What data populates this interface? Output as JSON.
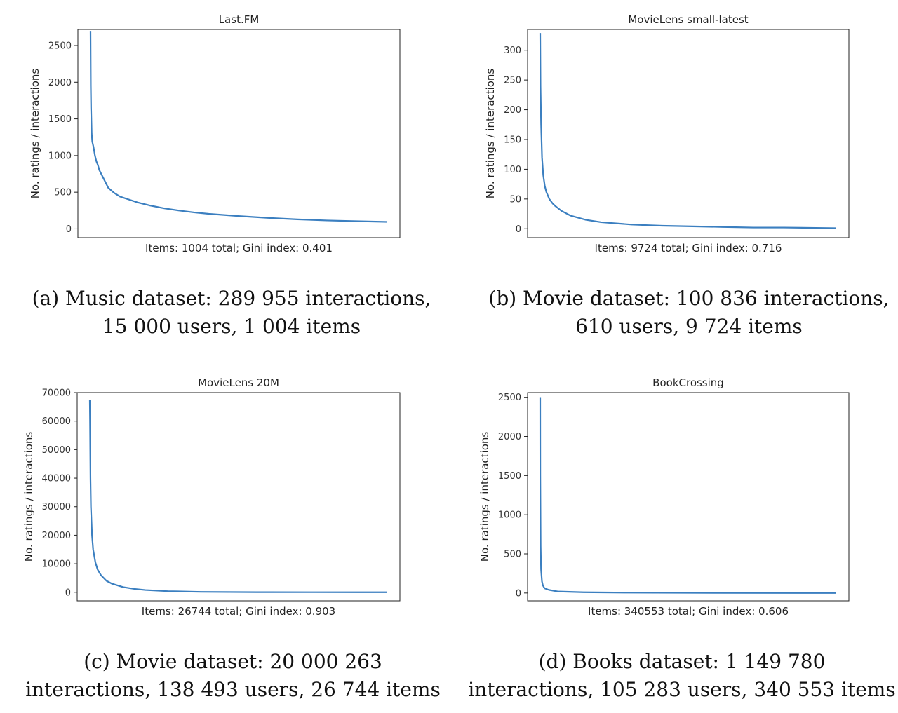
{
  "chart_data": [
    {
      "type": "line",
      "title": "Last.FM",
      "xlabel": "Items: 1004 total; Gini index: 0.401",
      "ylabel": "No. ratings / interactions",
      "yticks": [
        0,
        500,
        1000,
        1500,
        2000,
        2500
      ],
      "ylim": [
        -120,
        2720
      ],
      "x": [
        0,
        1,
        2,
        4,
        6,
        10,
        15,
        20,
        25,
        30,
        40,
        50,
        60,
        80,
        100,
        130,
        160,
        200,
        250,
        300,
        350,
        400,
        500,
        600,
        700,
        800,
        900,
        1004
      ],
      "series": [
        {
          "values": [
            2700,
            1950,
            1650,
            1300,
            1190,
            1120,
            1000,
            920,
            870,
            800,
            720,
            640,
            560,
            490,
            440,
            400,
            360,
            320,
            280,
            250,
            225,
            205,
            175,
            150,
            130,
            115,
            105,
            95
          ]
        }
      ],
      "caption": [
        "(a) Music dataset: 289 955 interactions,",
        "15 000 users, 1 004 items"
      ]
    },
    {
      "type": "line",
      "title": "MovieLens small-latest",
      "xlabel": "Items: 9724 total; Gini index: 0.716",
      "ylabel": "No. ratings / interactions",
      "yticks": [
        0,
        50,
        100,
        150,
        200,
        250,
        300
      ],
      "ylim": [
        -15,
        335
      ],
      "x": [
        0,
        10,
        30,
        60,
        100,
        150,
        200,
        300,
        400,
        500,
        700,
        1000,
        1500,
        2000,
        3000,
        4000,
        5000,
        6000,
        7000,
        8000,
        9724
      ],
      "series": [
        {
          "values": [
            329,
            240,
            175,
            120,
            90,
            72,
            62,
            50,
            43,
            38,
            30,
            22,
            15,
            11,
            7,
            5,
            4,
            3,
            2,
            2,
            1
          ]
        }
      ],
      "caption": [
        "(b) Movie dataset: 100 836 interactions,",
        "610 users, 9 724 items"
      ]
    },
    {
      "type": "line",
      "title": "MovieLens 20M",
      "xlabel": "Items: 26744 total; Gini index: 0.903",
      "ylabel": "No. ratings / interactions",
      "yticks": [
        0,
        10000,
        20000,
        30000,
        40000,
        50000,
        60000,
        70000
      ],
      "ylim": [
        -3000,
        70000
      ],
      "x": [
        0,
        20,
        60,
        100,
        200,
        300,
        500,
        700,
        1000,
        1500,
        2000,
        3000,
        4000,
        5000,
        7000,
        10000,
        15000,
        20000,
        26744
      ],
      "series": [
        {
          "values": [
            67300,
            60000,
            40000,
            30000,
            20000,
            15000,
            10500,
            8000,
            6000,
            4000,
            3000,
            1800,
            1200,
            800,
            400,
            150,
            50,
            20,
            5
          ]
        }
      ],
      "caption": [
        "(c) Movie dataset: 20 000 263",
        "interactions, 138 493 users, 26 744 items"
      ]
    },
    {
      "type": "line",
      "title": "BookCrossing",
      "xlabel": "Items: 340553 total; Gini index: 0.606",
      "ylabel": "No. ratings / interactions",
      "yticks": [
        0,
        500,
        1000,
        1500,
        2000,
        2500
      ],
      "ylim": [
        -100,
        2560
      ],
      "x": [
        0,
        100,
        500,
        1000,
        2000,
        3000,
        5000,
        10000,
        20000,
        50000,
        100000,
        200000,
        300000,
        340553
      ],
      "series": [
        {
          "values": [
            2502,
            1500,
            600,
            300,
            150,
            100,
            60,
            40,
            20,
            10,
            5,
            2,
            1,
            1
          ]
        }
      ],
      "caption": [
        "(d) Books dataset: 1 149 780",
        "interactions, 105 283 users, 340 553 items"
      ]
    }
  ]
}
